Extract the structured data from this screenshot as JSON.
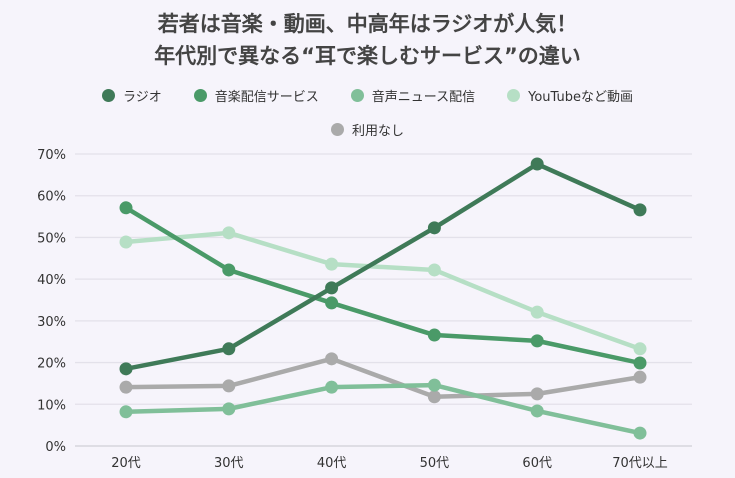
{
  "chart_data": {
    "type": "line",
    "title": [
      "若者は音楽・動画、中高年はラジオが人気！",
      "年代別で異なる“耳で楽しむサービス”の違い"
    ],
    "categories": [
      "20代",
      "30代",
      "40代",
      "50代",
      "60代",
      "70代以上"
    ],
    "ylim": [
      0,
      70
    ],
    "yticks": [
      0,
      10,
      20,
      30,
      40,
      50,
      60,
      70
    ],
    "ytick_labels": [
      "0%",
      "10%",
      "20%",
      "30%",
      "40%",
      "50%",
      "60%",
      "70%"
    ],
    "grid": true,
    "legend": "top",
    "series": [
      {
        "name": "ラジオ",
        "color": "#3f7a58",
        "values": [
          18.5,
          23.3,
          37.9,
          52.3,
          67.6,
          56.6
        ]
      },
      {
        "name": "音楽配信サービス",
        "color": "#4a9a68",
        "values": [
          57.1,
          42.2,
          34.3,
          26.6,
          25.2,
          19.9
        ]
      },
      {
        "name": "音声ニュース配信",
        "color": "#80bf99",
        "values": [
          8.2,
          8.9,
          14.1,
          14.6,
          8.4,
          3.1
        ]
      },
      {
        "name": "YouTubeなど動画",
        "color": "#b6dfc5",
        "values": [
          48.9,
          51.1,
          43.6,
          42.2,
          32.1,
          23.3
        ]
      },
      {
        "name": "利用なし",
        "color": "#aaaaaa",
        "values": [
          14.1,
          14.4,
          20.9,
          11.8,
          12.5,
          16.5
        ]
      }
    ]
  }
}
